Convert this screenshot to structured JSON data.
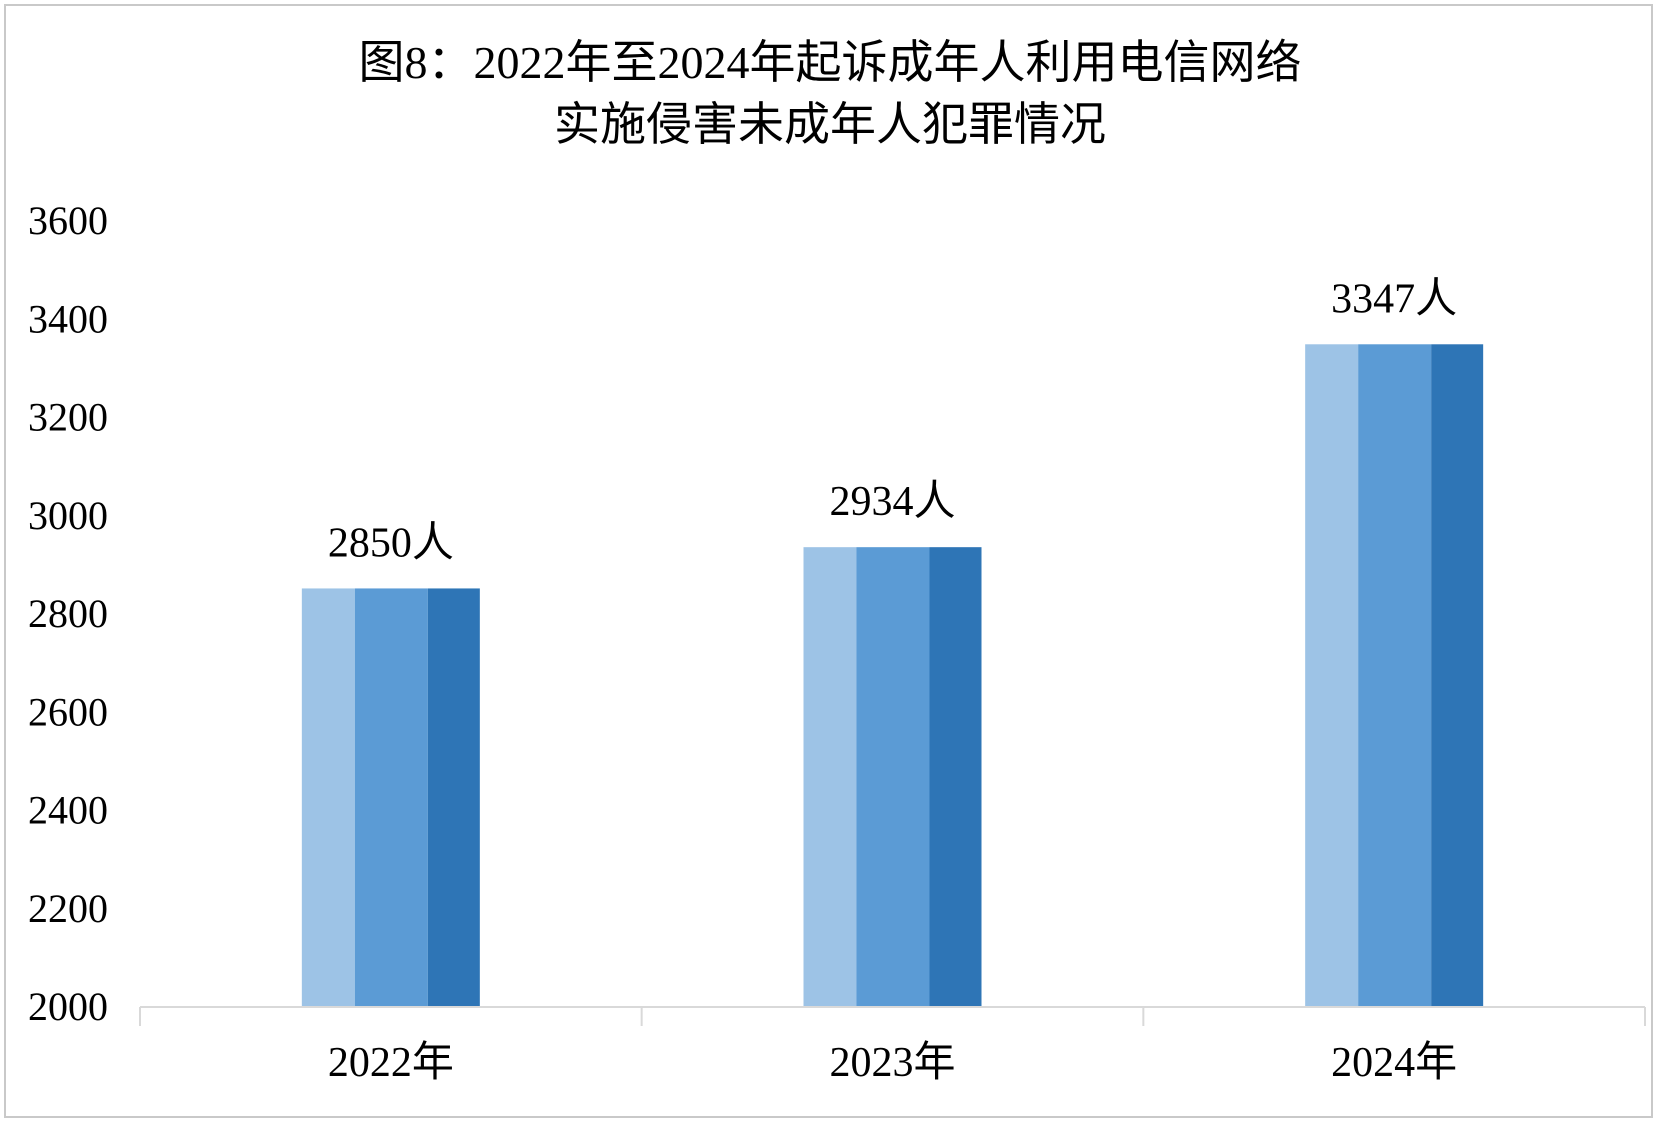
{
  "chart_data": {
    "type": "bar",
    "title": "图8：2022年至2024年起诉成年人利用电信网络",
    "subtitle": "实施侵害未成年人犯罪情况",
    "categories": [
      "2022年",
      "2023年",
      "2024年"
    ],
    "values": [
      2850,
      2934,
      3347
    ],
    "data_labels": [
      "2850人",
      "2934人",
      "3347人"
    ],
    "ylim": [
      2000,
      3600
    ],
    "yticks": [
      2000,
      2200,
      2400,
      2600,
      2800,
      3000,
      3200,
      3400,
      3600
    ],
    "grid": false,
    "legend": "none",
    "colors": {
      "bar_light": "#9dc3e6",
      "bar_mid": "#5b9bd5",
      "bar_dark": "#2e75b6",
      "axis": "#d9d9d9",
      "text": "#000000"
    }
  }
}
